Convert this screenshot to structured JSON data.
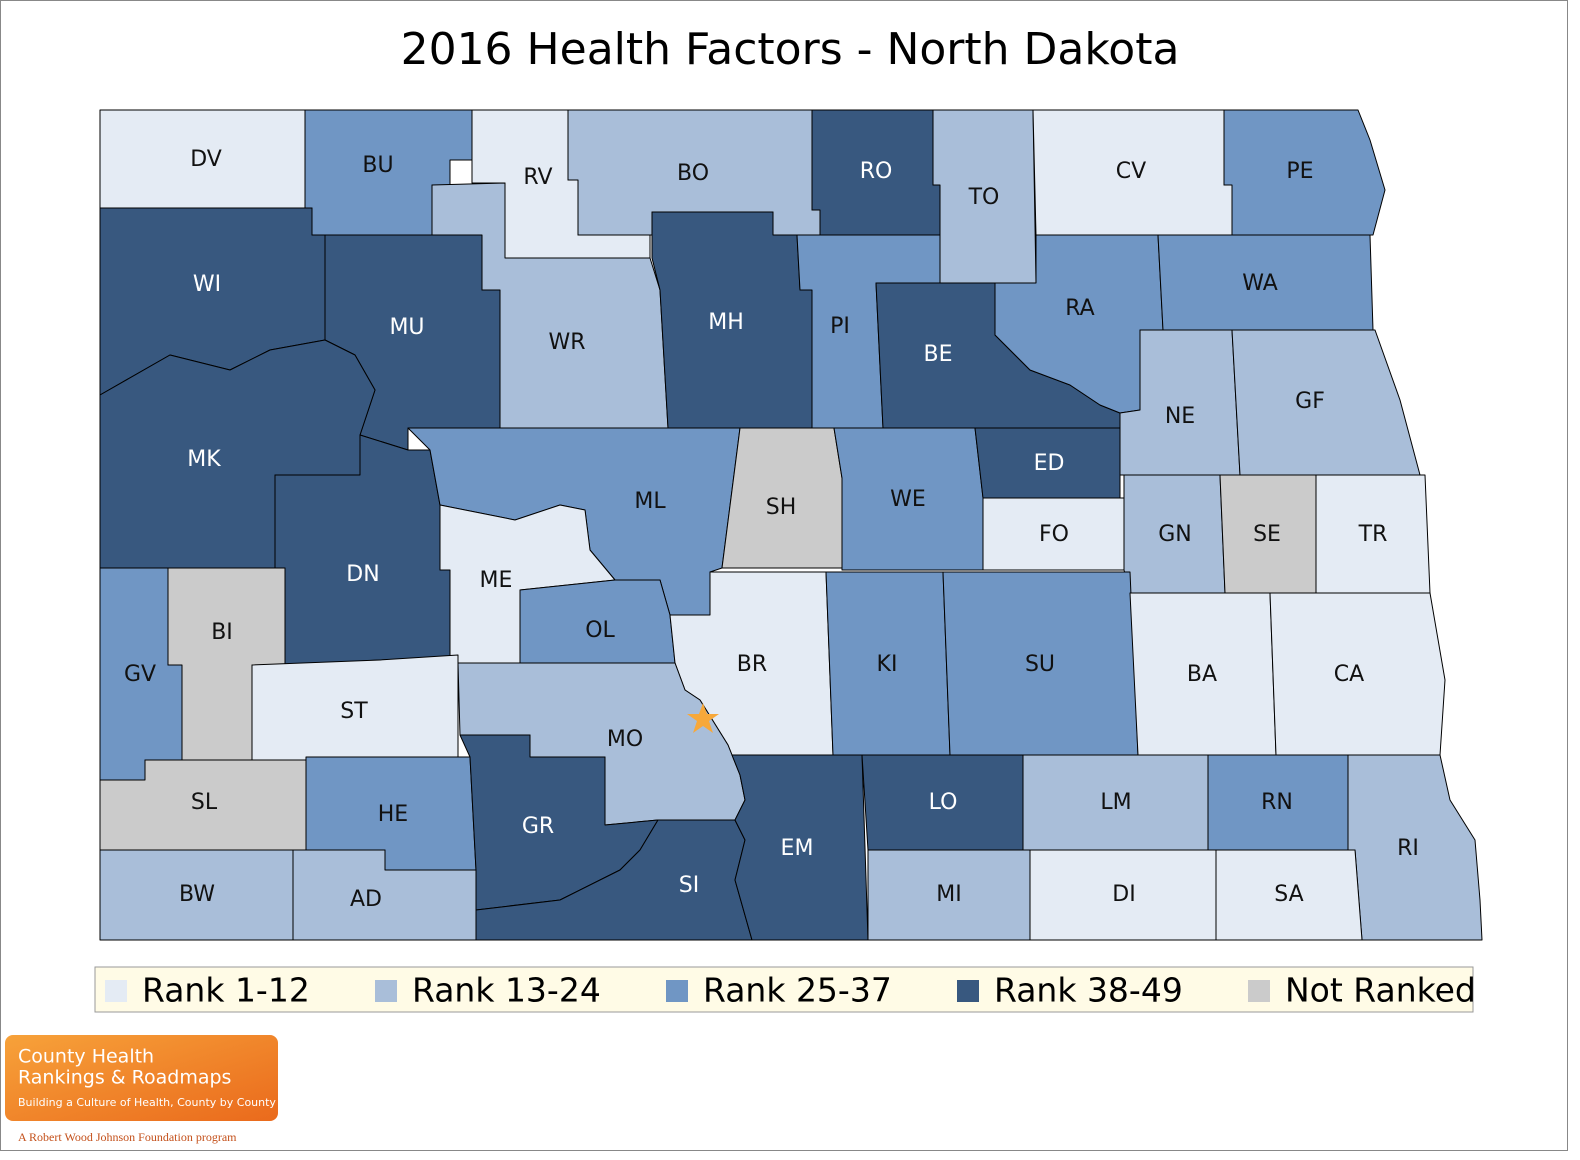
{
  "title": "2016 Health Factors - North Dakota",
  "legend": [
    {
      "label": "Rank 1-12",
      "color": "#e4ebf4"
    },
    {
      "label": "Rank 13-24",
      "color": "#a9bed9"
    },
    {
      "label": "Rank 25-37",
      "color": "#7096c4"
    },
    {
      "label": "Rank 38-49",
      "color": "#38587f"
    },
    {
      "label": "Not Ranked",
      "color": "#cbcbcb"
    }
  ],
  "counties": [
    {
      "label": "DV",
      "color": "#e4ebf4"
    },
    {
      "label": "BU",
      "color": "#7096c4"
    },
    {
      "label": "RV",
      "color": "#e4ebf4"
    },
    {
      "label": "BO",
      "color": "#a9bed9"
    },
    {
      "label": "RO",
      "color": "#38587f"
    },
    {
      "label": "TO",
      "color": "#a9bed9"
    },
    {
      "label": "CV",
      "color": "#e4ebf4"
    },
    {
      "label": "PE",
      "color": "#7096c4"
    },
    {
      "label": "WI",
      "color": "#38587f"
    },
    {
      "label": "MU",
      "color": "#38587f"
    },
    {
      "label": "WR",
      "color": "#a9bed9"
    },
    {
      "label": "MH",
      "color": "#38587f"
    },
    {
      "label": "PI",
      "color": "#7096c4"
    },
    {
      "label": "BE",
      "color": "#38587f"
    },
    {
      "label": "RA",
      "color": "#7096c4"
    },
    {
      "label": "WA",
      "color": "#7096c4"
    },
    {
      "label": "NE",
      "color": "#a9bed9"
    },
    {
      "label": "GF",
      "color": "#a9bed9"
    },
    {
      "label": "MK",
      "color": "#38587f"
    },
    {
      "label": "DN",
      "color": "#38587f"
    },
    {
      "label": "ML",
      "color": "#7096c4"
    },
    {
      "label": "SH",
      "color": "#cbcbcb"
    },
    {
      "label": "WE",
      "color": "#7096c4"
    },
    {
      "label": "ED",
      "color": "#38587f"
    },
    {
      "label": "FO",
      "color": "#e4ebf4"
    },
    {
      "label": "GN",
      "color": "#a9bed9"
    },
    {
      "label": "SE",
      "color": "#cbcbcb"
    },
    {
      "label": "TR",
      "color": "#e4ebf4"
    },
    {
      "label": "ME",
      "color": "#e4ebf4"
    },
    {
      "label": "OL",
      "color": "#7096c4"
    },
    {
      "label": "BR",
      "color": "#e4ebf4"
    },
    {
      "label": "KI",
      "color": "#7096c4"
    },
    {
      "label": "SU",
      "color": "#7096c4"
    },
    {
      "label": "BA",
      "color": "#e4ebf4"
    },
    {
      "label": "CA",
      "color": "#e4ebf4"
    },
    {
      "label": "GV",
      "color": "#7096c4"
    },
    {
      "label": "BI",
      "color": "#cbcbcb"
    },
    {
      "label": "ST",
      "color": "#e4ebf4"
    },
    {
      "label": "MO",
      "color": "#a9bed9"
    },
    {
      "label": "SL",
      "color": "#cbcbcb"
    },
    {
      "label": "HE",
      "color": "#7096c4"
    },
    {
      "label": "GR",
      "color": "#38587f"
    },
    {
      "label": "SI",
      "color": "#38587f"
    },
    {
      "label": "EM",
      "color": "#38587f"
    },
    {
      "label": "LO",
      "color": "#38587f"
    },
    {
      "label": "LM",
      "color": "#a9bed9"
    },
    {
      "label": "RN",
      "color": "#7096c4"
    },
    {
      "label": "RI",
      "color": "#a9bed9"
    },
    {
      "label": "BW",
      "color": "#a9bed9"
    },
    {
      "label": "AD",
      "color": "#a9bed9"
    },
    {
      "label": "MI",
      "color": "#a9bed9"
    },
    {
      "label": "DI",
      "color": "#e4ebf4"
    },
    {
      "label": "SA",
      "color": "#e4ebf4"
    }
  ],
  "logo": {
    "line1": "County Health",
    "line2": "Rankings & Roadmaps",
    "tagline": "Building a Culture of Health, County by County",
    "footer": "A Robert Wood Johnson Foundation program"
  }
}
